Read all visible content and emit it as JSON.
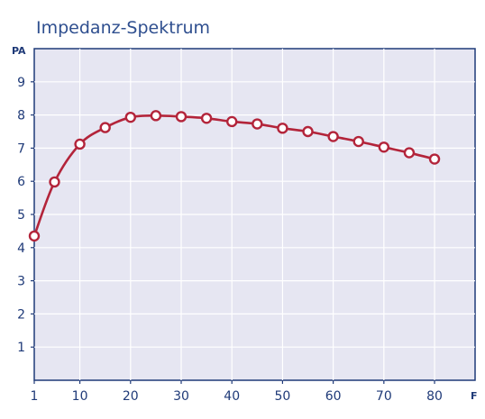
{
  "chart_data": {
    "type": "line",
    "title": "Impedanz-Spektrum",
    "xlabel": "F",
    "ylabel": "PA",
    "x_ticks": [
      "1",
      "10",
      "20",
      "30",
      "40",
      "50",
      "60",
      "70",
      "80"
    ],
    "y_ticks": [
      "1",
      "2",
      "3",
      "4",
      "5",
      "6",
      "7",
      "8",
      "9"
    ],
    "xlim": [
      1,
      88
    ],
    "ylim": [
      0,
      10
    ],
    "grid": true,
    "series": [
      {
        "color": "#b3243a",
        "x": [
          1,
          5,
          10,
          15,
          20,
          25,
          30,
          35,
          40,
          45,
          50,
          55,
          60,
          65,
          70,
          75,
          80
        ],
        "y": [
          4.35,
          5.98,
          7.12,
          7.62,
          7.93,
          7.98,
          7.95,
          7.9,
          7.8,
          7.73,
          7.6,
          7.5,
          7.35,
          7.2,
          7.03,
          6.86,
          6.67
        ]
      }
    ]
  }
}
